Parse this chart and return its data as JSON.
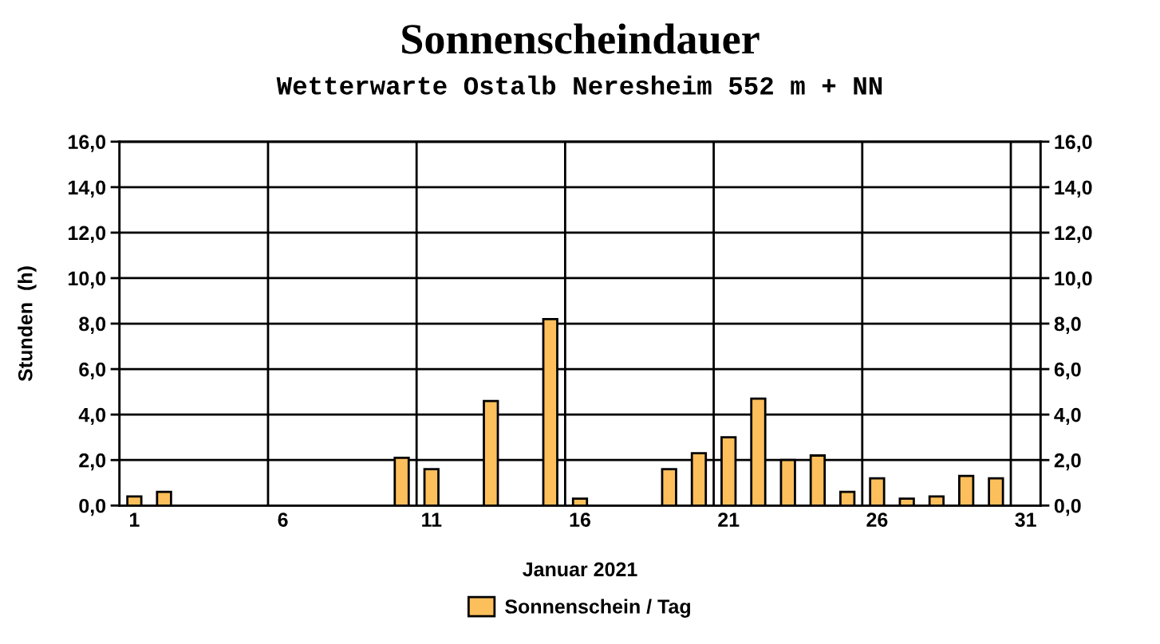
{
  "chart_data": {
    "type": "bar",
    "title": "Sonnenscheindauer",
    "subtitle": "Wetterwarte Ostalb Neresheim 552 m + NN",
    "xlabel": "Januar 2021",
    "ylabel": "Stunden  (h)",
    "categories": [
      "1",
      null,
      null,
      null,
      null,
      "6",
      null,
      null,
      null,
      null,
      "11",
      null,
      null,
      null,
      null,
      "16",
      null,
      null,
      null,
      null,
      "21",
      null,
      null,
      null,
      null,
      "26",
      null,
      null,
      null,
      null,
      "31"
    ],
    "series": [
      {
        "name": "Sonnenschein / Tag",
        "color": "#fcbf5c",
        "values": [
          0.4,
          0.6,
          0,
          0,
          0,
          0,
          0,
          0,
          0,
          2.1,
          1.6,
          0,
          4.6,
          0,
          8.2,
          0.3,
          0,
          0,
          1.6,
          2.3,
          3.0,
          4.7,
          2.0,
          2.2,
          0.6,
          1.2,
          0.3,
          0.4,
          1.3,
          1.2,
          null
        ]
      }
    ],
    "ylim": [
      0,
      16
    ],
    "yticks": [
      {
        "value": 0,
        "label": "0,0"
      },
      {
        "value": 2,
        "label": "2,0"
      },
      {
        "value": 4,
        "label": "4,0"
      },
      {
        "value": 6,
        "label": "6,0"
      },
      {
        "value": 8,
        "label": "8,0"
      },
      {
        "value": 10,
        "label": "10,0"
      },
      {
        "value": 12,
        "label": "12,0"
      },
      {
        "value": 14,
        "label": "14,0"
      },
      {
        "value": 16,
        "label": "16,0"
      }
    ],
    "y2lim": [
      0,
      16
    ],
    "y2ticks": [
      {
        "value": 0,
        "label": "0,0"
      },
      {
        "value": 2,
        "label": "2,0"
      },
      {
        "value": 4,
        "label": "4,0"
      },
      {
        "value": 6,
        "label": "6,0"
      },
      {
        "value": 8,
        "label": "8,0"
      },
      {
        "value": 10,
        "label": "10,0"
      },
      {
        "value": 12,
        "label": "12,0"
      },
      {
        "value": 14,
        "label": "14,0"
      },
      {
        "value": 16,
        "label": "16,0"
      }
    ],
    "grid": true,
    "legend": "bottom"
  }
}
